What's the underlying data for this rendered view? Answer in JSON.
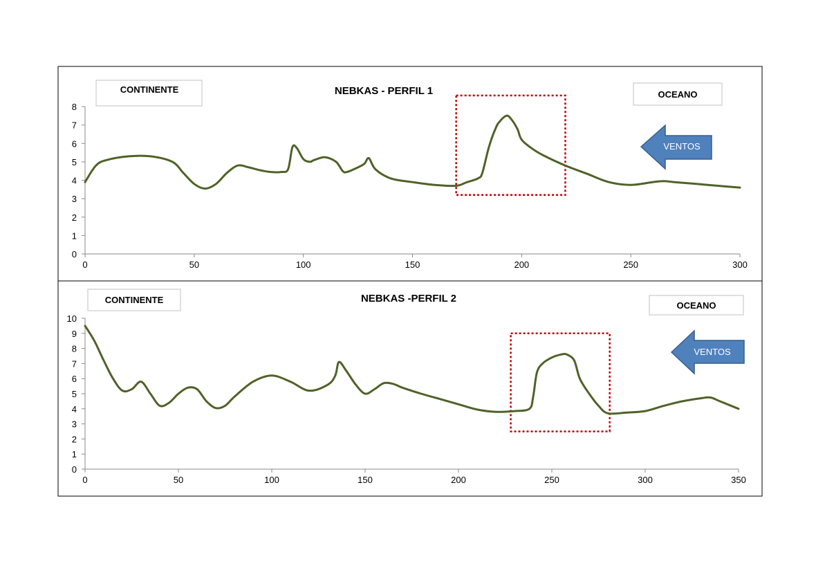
{
  "chart_data": [
    {
      "type": "line",
      "title": "NEBKAS - PERFIL 1",
      "xlim": [
        0,
        300
      ],
      "ylim": [
        0,
        8
      ],
      "x_ticks": [
        "0",
        "50",
        "100",
        "150",
        "200",
        "250",
        "300"
      ],
      "y_ticks": [
        "0",
        "1",
        "2",
        "3",
        "4",
        "5",
        "6",
        "7",
        "8"
      ],
      "grid": false,
      "line_color": "#4f6228",
      "annotations": {
        "left_label": "CONTINENTE",
        "right_label": "OCEANO",
        "arrow_label": "VENTOS",
        "highlight_x_range": [
          170,
          220
        ],
        "highlight_y_range": [
          3.2,
          8.6
        ]
      },
      "series": [
        {
          "x": [
            0,
            5,
            10,
            20,
            30,
            40,
            45,
            50,
            55,
            60,
            65,
            70,
            75,
            80,
            85,
            90,
            93,
            95,
            97,
            100,
            103,
            105,
            110,
            115,
            118,
            120,
            125,
            128,
            130,
            133,
            140,
            150,
            160,
            170,
            175,
            180,
            182,
            185,
            188,
            190,
            193,
            195,
            198,
            200,
            205,
            210,
            220,
            230,
            240,
            250,
            260,
            265,
            270,
            280,
            290,
            300
          ],
          "y": [
            3.9,
            4.8,
            5.1,
            5.3,
            5.3,
            5.0,
            4.4,
            3.8,
            3.55,
            3.8,
            4.4,
            4.8,
            4.7,
            4.55,
            4.45,
            4.45,
            4.6,
            5.8,
            5.75,
            5.15,
            5.0,
            5.1,
            5.25,
            5.0,
            4.5,
            4.45,
            4.7,
            4.9,
            5.2,
            4.6,
            4.1,
            3.9,
            3.75,
            3.7,
            3.9,
            4.1,
            4.4,
            5.8,
            6.8,
            7.2,
            7.5,
            7.35,
            6.8,
            6.2,
            5.7,
            5.35,
            4.8,
            4.35,
            3.9,
            3.75,
            3.9,
            3.95,
            3.9,
            3.8,
            3.7,
            3.6
          ]
        }
      ]
    },
    {
      "type": "line",
      "title": "NEBKAS -PERFIL 2",
      "xlim": [
        0,
        350
      ],
      "ylim": [
        0,
        10
      ],
      "x_ticks": [
        "0",
        "50",
        "100",
        "150",
        "200",
        "250",
        "300",
        "350"
      ],
      "y_ticks": [
        "0",
        "1",
        "2",
        "3",
        "4",
        "5",
        "6",
        "7",
        "8",
        "9",
        "10"
      ],
      "grid": false,
      "line_color": "#4f6228",
      "annotations": {
        "left_label": "CONTINENTE",
        "right_label": "OCEANO",
        "arrow_label": "VENTOS",
        "highlight_x_range": [
          228,
          281
        ],
        "highlight_y_range": [
          2.5,
          9.0
        ]
      },
      "series": [
        {
          "x": [
            0,
            5,
            10,
            15,
            20,
            25,
            30,
            35,
            40,
            45,
            50,
            55,
            60,
            65,
            70,
            75,
            80,
            90,
            100,
            110,
            120,
            130,
            134,
            136,
            140,
            145,
            150,
            155,
            160,
            165,
            170,
            180,
            190,
            200,
            210,
            220,
            230,
            238,
            240,
            242,
            245,
            250,
            255,
            258,
            262,
            265,
            270,
            275,
            280,
            290,
            300,
            310,
            320,
            330,
            335,
            340,
            350
          ],
          "y": [
            9.5,
            8.5,
            7.2,
            6.0,
            5.2,
            5.3,
            5.8,
            5.0,
            4.2,
            4.4,
            5.0,
            5.4,
            5.3,
            4.5,
            4.05,
            4.2,
            4.8,
            5.8,
            6.2,
            5.8,
            5.2,
            5.6,
            6.2,
            7.1,
            6.5,
            5.6,
            5.0,
            5.3,
            5.7,
            5.65,
            5.4,
            5.0,
            4.65,
            4.3,
            3.95,
            3.8,
            3.85,
            4.0,
            4.8,
            6.4,
            7.0,
            7.4,
            7.6,
            7.6,
            7.2,
            6.0,
            5.0,
            4.2,
            3.7,
            3.75,
            3.85,
            4.2,
            4.5,
            4.7,
            4.75,
            4.5,
            4.0
          ]
        }
      ]
    }
  ]
}
